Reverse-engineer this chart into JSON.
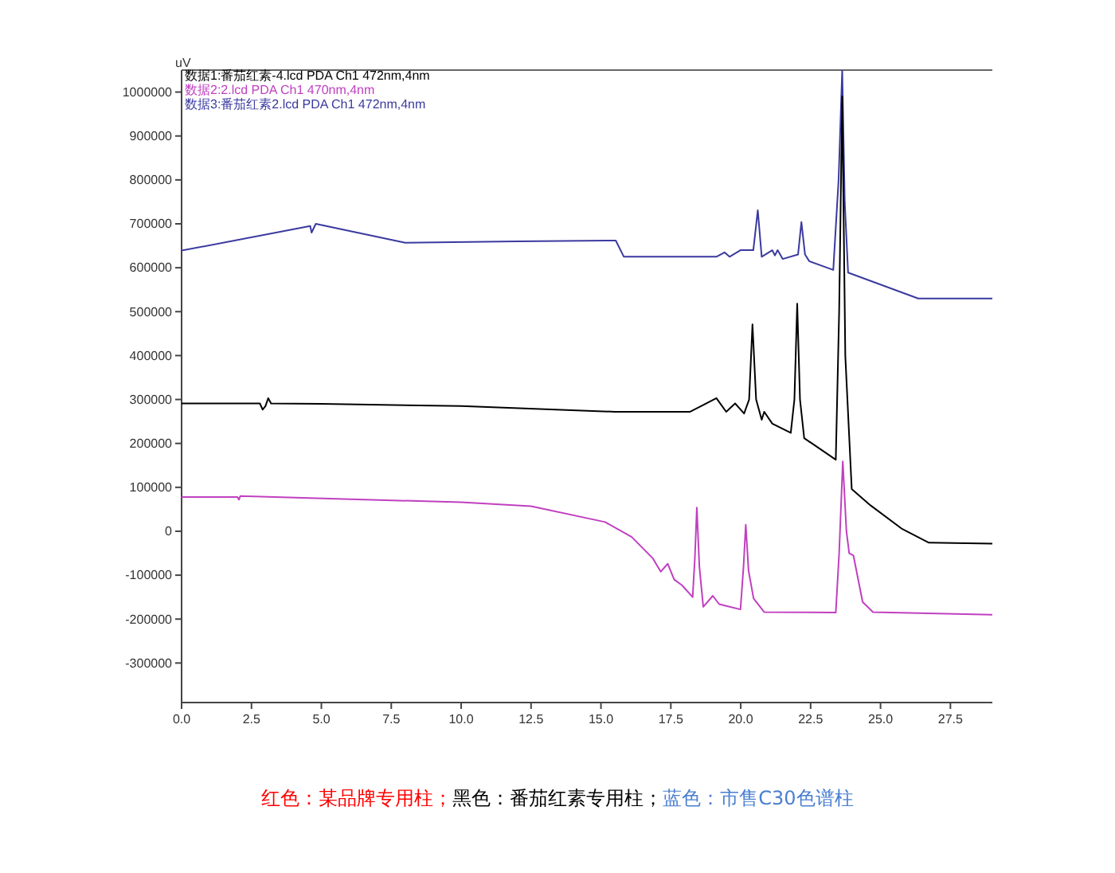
{
  "chart_data": {
    "type": "line",
    "ylabel": "uV",
    "legend": "top left",
    "grid": false,
    "xlim": [
      0,
      29
    ],
    "ylim": [
      -390000,
      1050000
    ],
    "xticks": [
      {
        "value": 0,
        "label": "0.0"
      },
      {
        "value": 2.5,
        "label": "2.5"
      },
      {
        "value": 5,
        "label": "5.0"
      },
      {
        "value": 7.5,
        "label": "7.5"
      },
      {
        "value": 10,
        "label": "10.0"
      },
      {
        "value": 12.5,
        "label": "12.5"
      },
      {
        "value": 15,
        "label": "15.0"
      },
      {
        "value": 17.5,
        "label": "17.5"
      },
      {
        "value": 20,
        "label": "20.0"
      },
      {
        "value": 22.5,
        "label": "22.5"
      },
      {
        "value": 25,
        "label": "25.0"
      },
      {
        "value": 27.5,
        "label": "27.5"
      }
    ],
    "yticks": [
      -300000,
      -200000,
      -100000,
      0,
      100000,
      200000,
      300000,
      400000,
      500000,
      600000,
      700000,
      800000,
      900000,
      1000000
    ],
    "series": [
      {
        "name": "数据1:番茄红素-4.lcd PDA Ch1 472nm,4nm",
        "color": "#000000",
        "x": [
          0,
          2.8,
          2.9,
          3.0,
          3.1,
          3.2,
          5,
          10,
          15.5,
          18.19,
          19.13,
          19.48,
          19.8,
          20.12,
          20.3,
          20.42,
          20.55,
          20.75,
          20.84,
          21.13,
          21.79,
          21.92,
          22.02,
          22.12,
          22.27,
          23.4,
          23.52,
          23.63,
          23.74,
          23.97,
          24.64,
          25.78,
          26.73,
          29
        ],
        "values": [
          291000,
          291000,
          277000,
          285000,
          303000,
          291000,
          290000,
          285000,
          272000,
          272000,
          303000,
          272000,
          291000,
          268000,
          300000,
          471000,
          300000,
          254000,
          272000,
          245000,
          224000,
          300000,
          518000,
          300000,
          212000,
          163000,
          500000,
          990000,
          400000,
          96000,
          59000,
          5000,
          -26000,
          -28000
        ]
      },
      {
        "name": "数据2:2.lcd PDA Ch1 470nm,4nm",
        "color": "#c040c0",
        "x": [
          0,
          2,
          2.05,
          2.1,
          10,
          12.5,
          15.15,
          16.1,
          16.86,
          17.14,
          17.39,
          17.62,
          17.9,
          18.28,
          18.36,
          18.43,
          18.52,
          18.66,
          19.0,
          19.23,
          19.99,
          20.1,
          20.18,
          20.28,
          20.46,
          20.84,
          23.4,
          23.52,
          23.65,
          23.78,
          23.88,
          24.03,
          24.36,
          24.73,
          29
        ],
        "values": [
          78000,
          78000,
          72000,
          80000,
          66000,
          57000,
          21000,
          -13000,
          -62000,
          -92000,
          -74000,
          -110000,
          -123000,
          -150000,
          -60000,
          54000,
          -80000,
          -172000,
          -147000,
          -166000,
          -178000,
          -80000,
          15000,
          -90000,
          -153000,
          -184000,
          -185000,
          -50000,
          159000,
          0,
          -50000,
          -55000,
          -161000,
          -184000,
          -190000
        ]
      },
      {
        "name": "数据3:番茄红素2.lcd PDA Ch1 472nm,4nm",
        "color": "#3a3aa0",
        "x": [
          0,
          4.6,
          4.65,
          4.8,
          8,
          12,
          15.53,
          15.82,
          19.13,
          19.42,
          19.6,
          19.99,
          20.45,
          20.61,
          20.75,
          21.13,
          21.22,
          21.32,
          21.5,
          22.05,
          22.17,
          22.3,
          22.45,
          23.31,
          23.5,
          23.63,
          23.72,
          23.84,
          26.35,
          29
        ],
        "values": [
          639000,
          695000,
          680000,
          700000,
          657000,
          660000,
          662000,
          625000,
          625000,
          635000,
          625000,
          640000,
          640000,
          731000,
          625000,
          640000,
          628000,
          640000,
          620000,
          630000,
          704000,
          630000,
          615000,
          595000,
          800000,
          1050000,
          750000,
          589000,
          530000,
          530000
        ]
      }
    ],
    "annotations": [
      "红色：某品牌专用柱；",
      "黑色：番茄红素专用柱；",
      "蓝色：市售C30色谱柱"
    ]
  }
}
